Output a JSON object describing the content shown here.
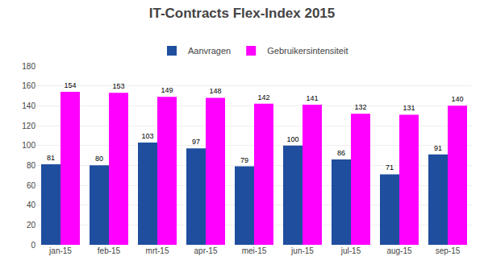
{
  "chart_data": {
    "type": "bar",
    "title": "IT-Contracts Flex-Index 2015",
    "categories": [
      "jan-15",
      "feb-15",
      "mrt-15",
      "apr-15",
      "mei-15",
      "jun-15",
      "jul-15",
      "aug-15",
      "sep-15"
    ],
    "series": [
      {
        "name": "Aanvragen",
        "color": "#1f4e9f",
        "values": [
          81,
          80,
          103,
          97,
          79,
          100,
          86,
          71,
          91
        ]
      },
      {
        "name": "Gebruikersintensiteit",
        "color": "#ff00ff",
        "values": [
          154,
          153,
          149,
          148,
          142,
          141,
          132,
          131,
          140
        ]
      }
    ],
    "ylim": [
      0,
      180
    ],
    "yticks": [
      0,
      20,
      40,
      60,
      80,
      100,
      120,
      140,
      160,
      180
    ],
    "grid": true,
    "legend": "top",
    "data_labels": true
  }
}
